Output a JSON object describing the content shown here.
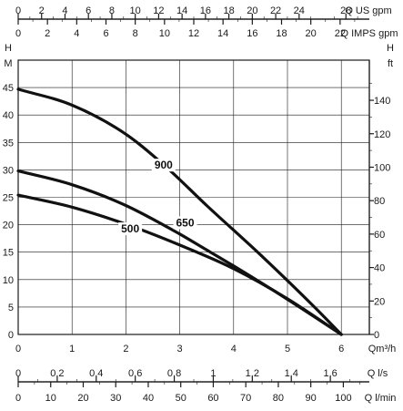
{
  "chart_data": {
    "type": "line",
    "grid": true,
    "x_axis": {
      "unit": "Qm³/h",
      "range": [
        0,
        6.5
      ],
      "ticks": [
        "0",
        "1",
        "2",
        "3",
        "4",
        "5",
        "6"
      ]
    },
    "y_left": {
      "title": "H",
      "unit": "M",
      "range": [
        0,
        50
      ],
      "ticks": [
        "0",
        "5",
        "10",
        "15",
        "20",
        "25",
        "30",
        "35",
        "40",
        "45"
      ]
    },
    "y_right": {
      "title": "H",
      "unit": "ft",
      "range": [
        0,
        164
      ],
      "ticks": [
        "0",
        "20",
        "40",
        "60",
        "80",
        "100",
        "120",
        "140"
      ]
    },
    "top_axes": [
      {
        "unit": "Q US gpm",
        "max": 30,
        "ticks": [
          "0",
          "2",
          "4",
          "6",
          "8",
          "10",
          "12",
          "14",
          "16",
          "18",
          "20",
          "22",
          "24",
          "28"
        ]
      },
      {
        "unit": "Q IMPS gpm",
        "max": 24,
        "ticks": [
          "0",
          "2",
          "4",
          "6",
          "8",
          "10",
          "12",
          "14",
          "16",
          "18",
          "20",
          "22"
        ]
      }
    ],
    "bottom_axes": [
      {
        "unit": "Q l/s",
        "max": 1.8,
        "ticks": [
          "0",
          "0,2",
          "0,4",
          "0,6",
          "0,8",
          "1",
          "1,2",
          "1,4",
          "1,6"
        ]
      },
      {
        "unit": "Q l/min",
        "max": 108,
        "ticks": [
          "0",
          "10",
          "20",
          "30",
          "40",
          "50",
          "60",
          "70",
          "80",
          "90",
          "100"
        ]
      }
    ],
    "series": [
      {
        "name": "900",
        "color": "#111111",
        "points": [
          [
            0,
            44.7
          ],
          [
            1,
            41.8
          ],
          [
            2,
            36.5
          ],
          [
            2.75,
            30.5
          ],
          [
            3.5,
            23.5
          ],
          [
            4.5,
            14.5
          ],
          [
            5.5,
            5
          ],
          [
            6,
            0
          ]
        ]
      },
      {
        "name": "650",
        "color": "#111111",
        "points": [
          [
            0,
            29.8
          ],
          [
            1,
            27.3
          ],
          [
            2,
            23.5
          ],
          [
            3,
            18.3
          ],
          [
            3.5,
            15.4
          ],
          [
            4,
            12.5
          ],
          [
            5,
            6.4
          ],
          [
            6,
            0
          ]
        ]
      },
      {
        "name": "500",
        "color": "#111111",
        "points": [
          [
            0,
            25.4
          ],
          [
            1,
            23.2
          ],
          [
            2,
            20.1
          ],
          [
            3,
            16.3
          ],
          [
            4,
            12
          ],
          [
            5,
            6.5
          ],
          [
            6,
            0
          ]
        ]
      }
    ]
  }
}
